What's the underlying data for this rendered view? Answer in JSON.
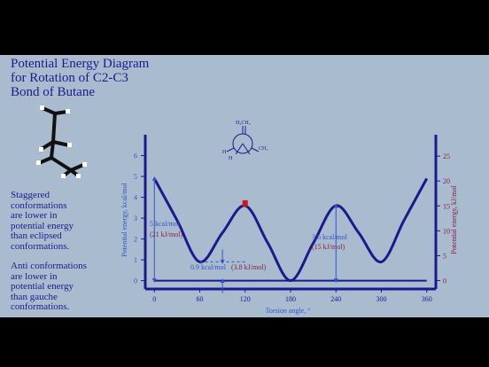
{
  "title": {
    "lines": [
      "Potential Energy Diagram",
      "for Rotation of C2-C3",
      "Bond of Butane"
    ]
  },
  "staggered_text": {
    "lines": [
      "Staggered",
      "conformations",
      "are lower in",
      "potential energy",
      "than eclipsed",
      "conformations."
    ]
  },
  "anti_text": {
    "lines": [
      "Anti conformations",
      "are lower in",
      "potential energy",
      "than gauche",
      "conformations."
    ]
  },
  "newman": {
    "top_label": "H₃CH₃",
    "right_label": "CH₃",
    "left_label": "H",
    "left_sub": "H"
  },
  "annotations": {
    "eclipsed_kcal": "5 kcal/mol",
    "eclipsed_kj": "(21 kJ/mol)",
    "gauche_kcal": "0.9 kcal/mol",
    "gauche_kj": "(3.8 kJ/mol)",
    "eclipsed2_kcal": "3.6 kcal/mol",
    "eclipsed2_kj": "(15 kJ/mol)"
  },
  "colors": {
    "background": "#a9bccf",
    "axis": "#1b1a8c",
    "left_axis_text": "#3552c9",
    "right_axis_text": "#8a1a45",
    "marker": "#d0141c",
    "frame": "#000000"
  },
  "chart_data": {
    "type": "line",
    "title": "",
    "xlabel": "Torsion angle, °",
    "ylabel": "Potential energy, kcal/mol",
    "y2label": "Potential energy, kJ/mol",
    "xlim": [
      -12,
      372
    ],
    "ylim": [
      -0.4,
      7
    ],
    "y2lim": [
      -1.7,
      29.3
    ],
    "xticks": [
      0,
      60,
      120,
      180,
      240,
      300,
      360
    ],
    "yticks": [
      0,
      1,
      2,
      3,
      4,
      5,
      6
    ],
    "y2ticks": [
      0,
      5,
      10,
      15,
      20,
      25
    ],
    "grid": false,
    "series": [
      {
        "x": [
          0,
          30,
          60,
          90,
          120,
          150,
          180,
          210,
          240,
          270,
          300,
          330,
          360
        ],
        "y": [
          4.9,
          2.9,
          0.9,
          2.3,
          3.6,
          1.8,
          0,
          1.8,
          3.6,
          2.3,
          0.9,
          2.9,
          4.9
        ]
      }
    ],
    "highlight_point": {
      "x": 120,
      "y": 3.6
    }
  }
}
